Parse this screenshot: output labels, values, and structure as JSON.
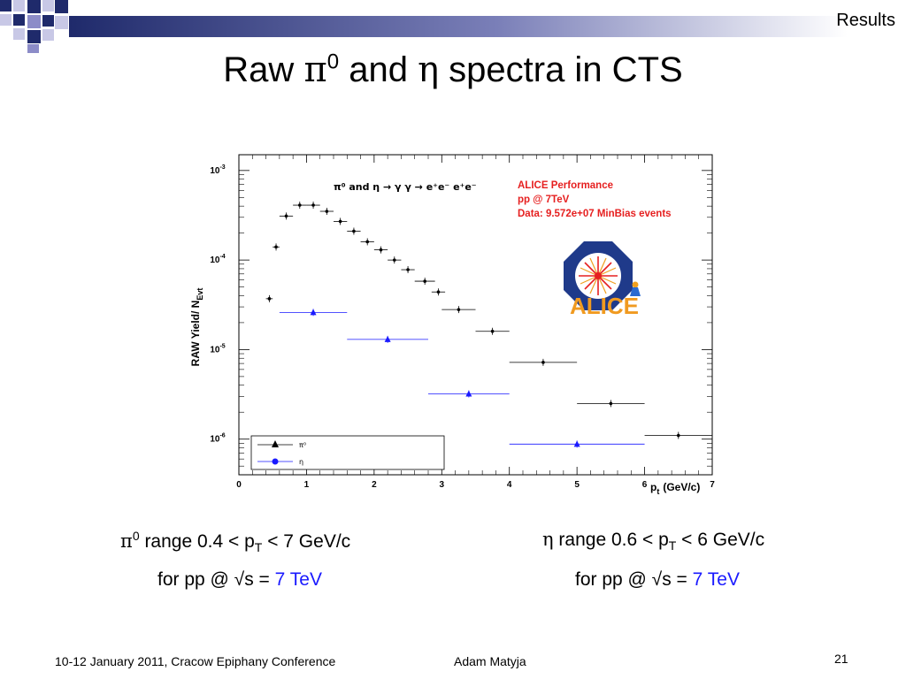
{
  "header": {
    "section_label": "Results",
    "title_prefix": "Raw ",
    "title_pi": "π",
    "title_pi_sup": "0",
    "title_and": " and ",
    "title_eta": "η",
    "title_suffix": " spectra in CTS"
  },
  "chart_data": {
    "type": "scatter",
    "title": "",
    "xlabel": "p",
    "xlabel_sub": "t",
    "xlabel_unit": "(GeV/c)",
    "ylabel": "RAW Yield/ N",
    "ylabel_sub": "Evt",
    "xlim": [
      0,
      7
    ],
    "ylim": [
      4e-07,
      0.0015
    ],
    "y_scale": "log",
    "x_ticks": [
      "0",
      "1",
      "2",
      "3",
      "4",
      "5",
      "6",
      "7"
    ],
    "y_ticks": [
      {
        "base": "10",
        "exp": "-6",
        "value": 1e-06
      },
      {
        "base": "10",
        "exp": "-5",
        "value": 1e-05
      },
      {
        "base": "10",
        "exp": "-4",
        "value": 0.0001
      },
      {
        "base": "10",
        "exp": "-3",
        "value": 0.001
      }
    ],
    "inner_label": "π⁰ and η → γ γ → e⁺e⁻  e⁺e⁻",
    "annotation_lines": [
      "ALICE Performance",
      "pp @ 7TeV",
      "Data: 9.572e+07 MinBias events"
    ],
    "logo_text": "ALICE",
    "legend_position": "bottom-left",
    "series": [
      {
        "name": "π⁰",
        "marker": "circle",
        "color": "#000000",
        "points": [
          {
            "x": 0.45,
            "y": 3.7e-05,
            "xerr": 0.05
          },
          {
            "x": 0.55,
            "y": 0.00014,
            "xerr": 0.05
          },
          {
            "x": 0.7,
            "y": 0.00031,
            "xerr": 0.1
          },
          {
            "x": 0.9,
            "y": 0.00041,
            "xerr": 0.1
          },
          {
            "x": 1.1,
            "y": 0.00041,
            "xerr": 0.1
          },
          {
            "x": 1.3,
            "y": 0.00035,
            "xerr": 0.1
          },
          {
            "x": 1.5,
            "y": 0.00027,
            "xerr": 0.1
          },
          {
            "x": 1.7,
            "y": 0.00021,
            "xerr": 0.1
          },
          {
            "x": 1.9,
            "y": 0.00016,
            "xerr": 0.1
          },
          {
            "x": 2.1,
            "y": 0.00013,
            "xerr": 0.1
          },
          {
            "x": 2.3,
            "y": 0.0001,
            "xerr": 0.1
          },
          {
            "x": 2.5,
            "y": 7.8e-05,
            "xerr": 0.1
          },
          {
            "x": 2.75,
            "y": 5.8e-05,
            "xerr": 0.15
          },
          {
            "x": 2.95,
            "y": 4.4e-05,
            "xerr": 0.1
          },
          {
            "x": 3.25,
            "y": 2.8e-05,
            "xerr": 0.25
          },
          {
            "x": 3.75,
            "y": 1.6e-05,
            "xerr": 0.25
          },
          {
            "x": 4.5,
            "y": 7.2e-06,
            "xerr": 0.5
          },
          {
            "x": 5.5,
            "y": 2.5e-06,
            "xerr": 0.5
          },
          {
            "x": 6.5,
            "y": 1.1e-06,
            "xerr": 0.5
          }
        ]
      },
      {
        "name": "η",
        "marker": "triangle",
        "color": "#1a1aff",
        "points": [
          {
            "x": 1.1,
            "y": 2.6e-05,
            "xerr": 0.5
          },
          {
            "x": 2.2,
            "y": 1.3e-05,
            "xerr": 0.6
          },
          {
            "x": 3.4,
            "y": 3.2e-06,
            "xerr": 0.6
          },
          {
            "x": 5.0,
            "y": 8.8e-07,
            "xerr": 1.0
          }
        ]
      }
    ]
  },
  "captions": {
    "left": {
      "pi": "π",
      "pi_sup": "0",
      "range_text": " range 0.4 < p",
      "range_sub": "T",
      "range_end": " < 7 GeV/c",
      "line2_prefix": "for pp @ √s = ",
      "line2_value": "7 TeV"
    },
    "right": {
      "eta": "η",
      "range_text": " range 0.6 < p",
      "range_sub": "T",
      "range_end": " < 6 GeV/c",
      "line2_prefix": "for pp @ √s = ",
      "line2_value": "7 TeV"
    }
  },
  "footer": {
    "conference": "10-12 January 2011, Cracow Epiphany Conference",
    "author": "Adam Matyja",
    "page": "21"
  },
  "colors": {
    "accent_navy": "#1f2a6b",
    "accent_lavender": "#8c8cc8",
    "alice_red": "#e62020",
    "eta_blue": "#1a1aff"
  }
}
